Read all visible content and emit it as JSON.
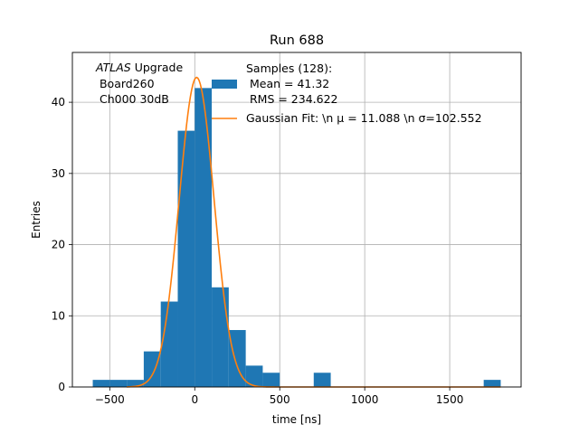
{
  "chart_data": {
    "type": "bar",
    "title": "Run 688",
    "xlabel": "time [ns]",
    "ylabel": "Entries",
    "xlim": [
      -720,
      1920
    ],
    "ylim": [
      0,
      47
    ],
    "grid": true,
    "x_ticks": [
      -500,
      0,
      500,
      1000,
      1500
    ],
    "x_tick_labels": [
      "−500",
      "0",
      "500",
      "1000",
      "1500"
    ],
    "y_ticks": [
      0,
      10,
      20,
      30,
      40
    ],
    "y_tick_labels": [
      "0",
      "10",
      "20",
      "30",
      "40"
    ],
    "bar_color": "#1f77b4",
    "fit_color": "#ff7f0e",
    "histogram": {
      "bins": [
        [
          -600,
          -500,
          1
        ],
        [
          -500,
          -400,
          1
        ],
        [
          -400,
          -300,
          1
        ],
        [
          -300,
          -200,
          5
        ],
        [
          -200,
          -100,
          12
        ],
        [
          -100,
          0,
          36
        ],
        [
          0,
          100,
          42
        ],
        [
          100,
          200,
          14
        ],
        [
          200,
          300,
          8
        ],
        [
          300,
          400,
          3
        ],
        [
          400,
          500,
          2
        ],
        [
          700,
          800,
          2
        ],
        [
          1700,
          1800,
          1
        ]
      ]
    },
    "fit": {
      "amplitude": 43.5,
      "mu": 11.088,
      "sigma": 102.552
    },
    "annotation": {
      "line1_italic": "ATLAS",
      "line1_rest": " Upgrade",
      "line2": " Board260",
      "line3": " Ch000 30dB"
    },
    "legend": {
      "placement": "top-right",
      "hist_lines": [
        "Samples (128):",
        " Mean = 41.32",
        " RMS = 234.622"
      ],
      "fit_label": "Gaussian Fit: \\n μ = 11.088 \\n σ=102.552"
    }
  }
}
